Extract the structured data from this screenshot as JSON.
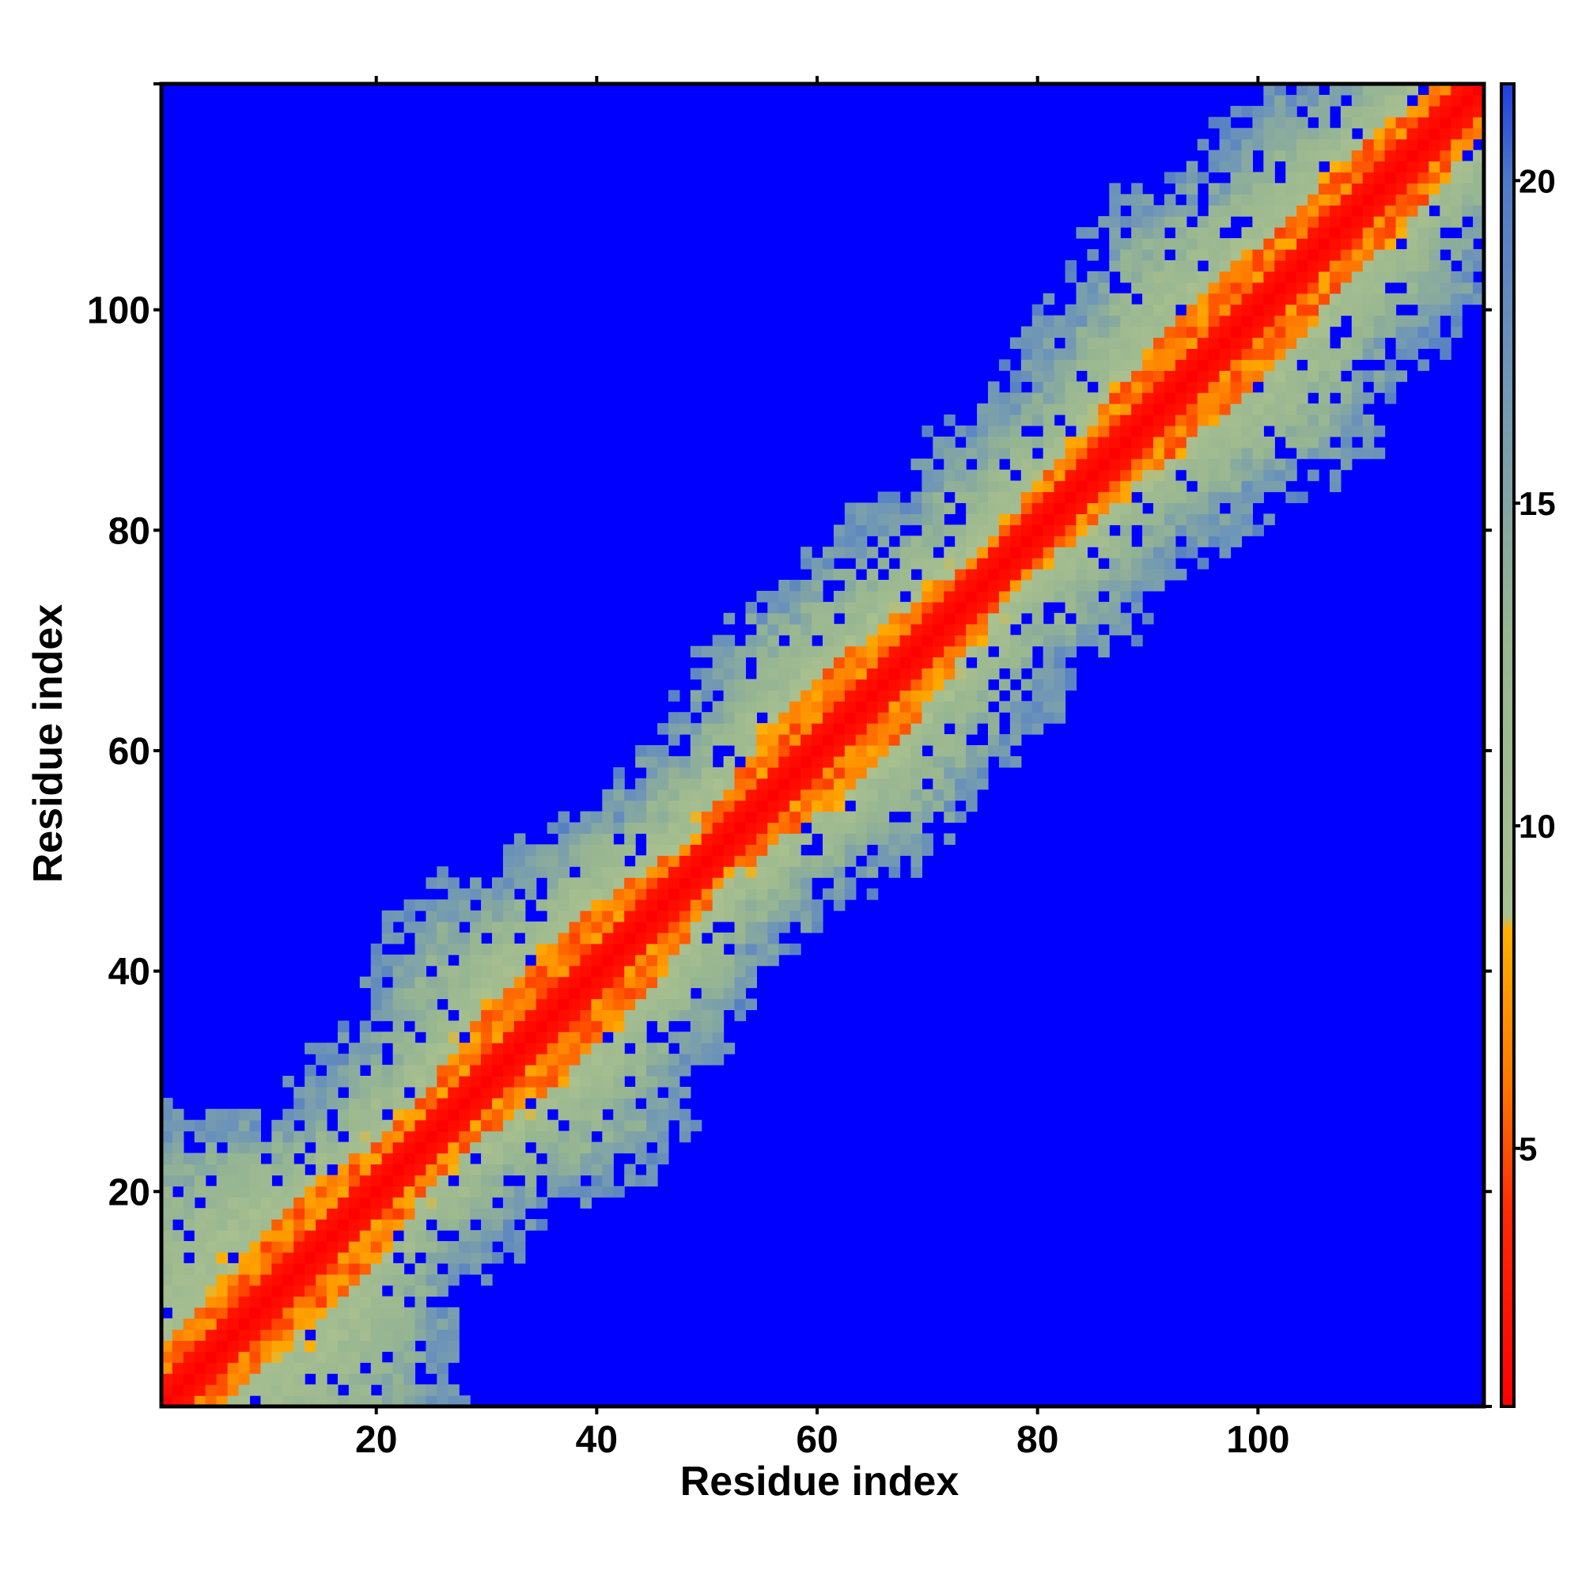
{
  "chart_data": {
    "type": "heatmap",
    "title": "",
    "xlabel": "Residue index",
    "ylabel": "Residue index",
    "xlim": [
      1,
      120
    ],
    "ylim": [
      1,
      120
    ],
    "x_ticks": [
      20,
      40,
      60,
      80,
      100
    ],
    "y_ticks": [
      20,
      40,
      60,
      80,
      100
    ],
    "colorbar": {
      "range": [
        1,
        21.5
      ],
      "ticks": [
        5,
        10,
        15,
        20
      ],
      "stops": [
        {
          "value": 1.0,
          "color": "#ff0000"
        },
        {
          "value": 4.0,
          "color": "#ff2a00"
        },
        {
          "value": 6.0,
          "color": "#ff7700"
        },
        {
          "value": 8.4,
          "color": "#ffb000"
        },
        {
          "value": 8.6,
          "color": "#a9c08f"
        },
        {
          "value": 13.0,
          "color": "#96b592"
        },
        {
          "value": 17.0,
          "color": "#6f96b6"
        },
        {
          "value": 20.0,
          "color": "#4f7ac8"
        },
        {
          "value": 21.5,
          "color": "#1f3fe0"
        }
      ],
      "background_color": "#0000ff"
    },
    "structure": {
      "residues": 120,
      "diagonal_value": 1.0,
      "band_nodes": [
        [
          1,
          5.0
        ],
        [
          15,
          6.5
        ],
        [
          25,
          4.0
        ],
        [
          33,
          6.5
        ],
        [
          42,
          6.5
        ],
        [
          50,
          3.5
        ],
        [
          58,
          6.0
        ],
        [
          66,
          6.0
        ],
        [
          75,
          3.5
        ],
        [
          86,
          4.5
        ],
        [
          96,
          6.5
        ],
        [
          107,
          5.5
        ],
        [
          120,
          4.5
        ]
      ],
      "cloud_centers": [
        [
          10,
          9.5
        ],
        [
          24,
          4.0
        ],
        [
          34,
          6.5
        ],
        [
          42,
          4.5
        ],
        [
          52,
          3.5
        ],
        [
          62,
          5.5
        ],
        [
          70,
          4.5
        ],
        [
          80,
          4.0
        ],
        [
          90,
          4.5
        ],
        [
          98,
          6.5
        ],
        [
          108,
          5.0
        ],
        [
          116,
          2.5
        ]
      ],
      "cloud_hole_rate": 0.16,
      "random_seed": 7
    }
  }
}
